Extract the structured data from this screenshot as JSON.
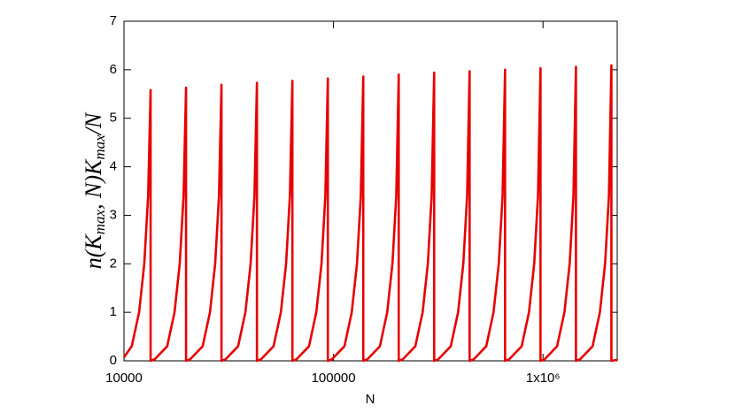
{
  "chart_data": {
    "type": "line",
    "xlabel": "N",
    "ylabel": [
      "n(K",
      "max",
      ", N)K",
      "max",
      "/N"
    ],
    "xscale": "log",
    "color": "#e60000",
    "xlim": [
      10000,
      2260000
    ],
    "xticks": [
      10000,
      100000,
      {
        "value": 1000000,
        "label": "1x10⁶"
      }
    ],
    "ylim": [
      0,
      7
    ],
    "yticks": [
      0,
      1,
      2,
      3,
      4,
      5,
      6,
      7
    ],
    "x": [
      10000,
      10890,
      11810,
      12500,
      13040,
      13400,
      13400,
      14000,
      16080,
      17430,
      18450,
      19250,
      19780,
      19780,
      20670,
      23740,
      25730,
      27240,
      28410,
      29200,
      29200,
      30520,
      35050,
      37980,
      40220,
      41950,
      43110,
      43110,
      45060,
      51750,
      56080,
      59390,
      61930,
      63650,
      63650,
      66520,
      76390,
      82780,
      87660,
      91420,
      93960,
      93960,
      98200,
      112800,
      122200,
      129400,
      135000,
      138700,
      138700,
      145000,
      166500,
      180400,
      191100,
      199300,
      204800,
      204800,
      214000,
      245800,
      266300,
      282000,
      294100,
      302300,
      302300,
      316000,
      362800,
      393200,
      416400,
      434200,
      446300,
      446300,
      466500,
      535700,
      580500,
      614800,
      641100,
      658900,
      658900,
      688700,
      790800,
      857000,
      907500,
      946400,
      972700,
      972700,
      1017000,
      1167000,
      1265000,
      1340000,
      1397000,
      1436000,
      1436000,
      1501000,
      1724000,
      1868000,
      1978000,
      2063000,
      2120000,
      2120000,
      2260000
    ],
    "values": [
      0.07,
      0.3,
      1.0,
      2.0,
      3.4,
      5.58,
      0,
      0.03,
      0.3,
      1.0,
      2.0,
      3.4,
      5.63,
      0,
      0.03,
      0.3,
      1.0,
      2.0,
      3.4,
      5.69,
      0,
      0.03,
      0.3,
      1.0,
      2.0,
      3.4,
      5.73,
      0,
      0.03,
      0.3,
      1.0,
      2.0,
      3.4,
      5.77,
      0,
      0.03,
      0.3,
      1.0,
      2.0,
      3.4,
      5.82,
      0,
      0.03,
      0.3,
      1.0,
      2.0,
      3.4,
      5.86,
      0,
      0.03,
      0.3,
      1.0,
      2.0,
      3.4,
      5.9,
      0,
      0.03,
      0.3,
      1.0,
      2.0,
      3.4,
      5.94,
      0,
      0.03,
      0.3,
      1.0,
      2.0,
      3.4,
      5.97,
      0,
      0.03,
      0.3,
      1.0,
      2.0,
      3.4,
      6.0,
      0,
      0.03,
      0.3,
      1.0,
      2.0,
      3.4,
      6.03,
      0,
      0.03,
      0.3,
      1.0,
      2.0,
      3.4,
      6.06,
      0,
      0.03,
      0.3,
      1.0,
      2.0,
      3.4,
      6.09,
      0,
      0.02
    ]
  }
}
